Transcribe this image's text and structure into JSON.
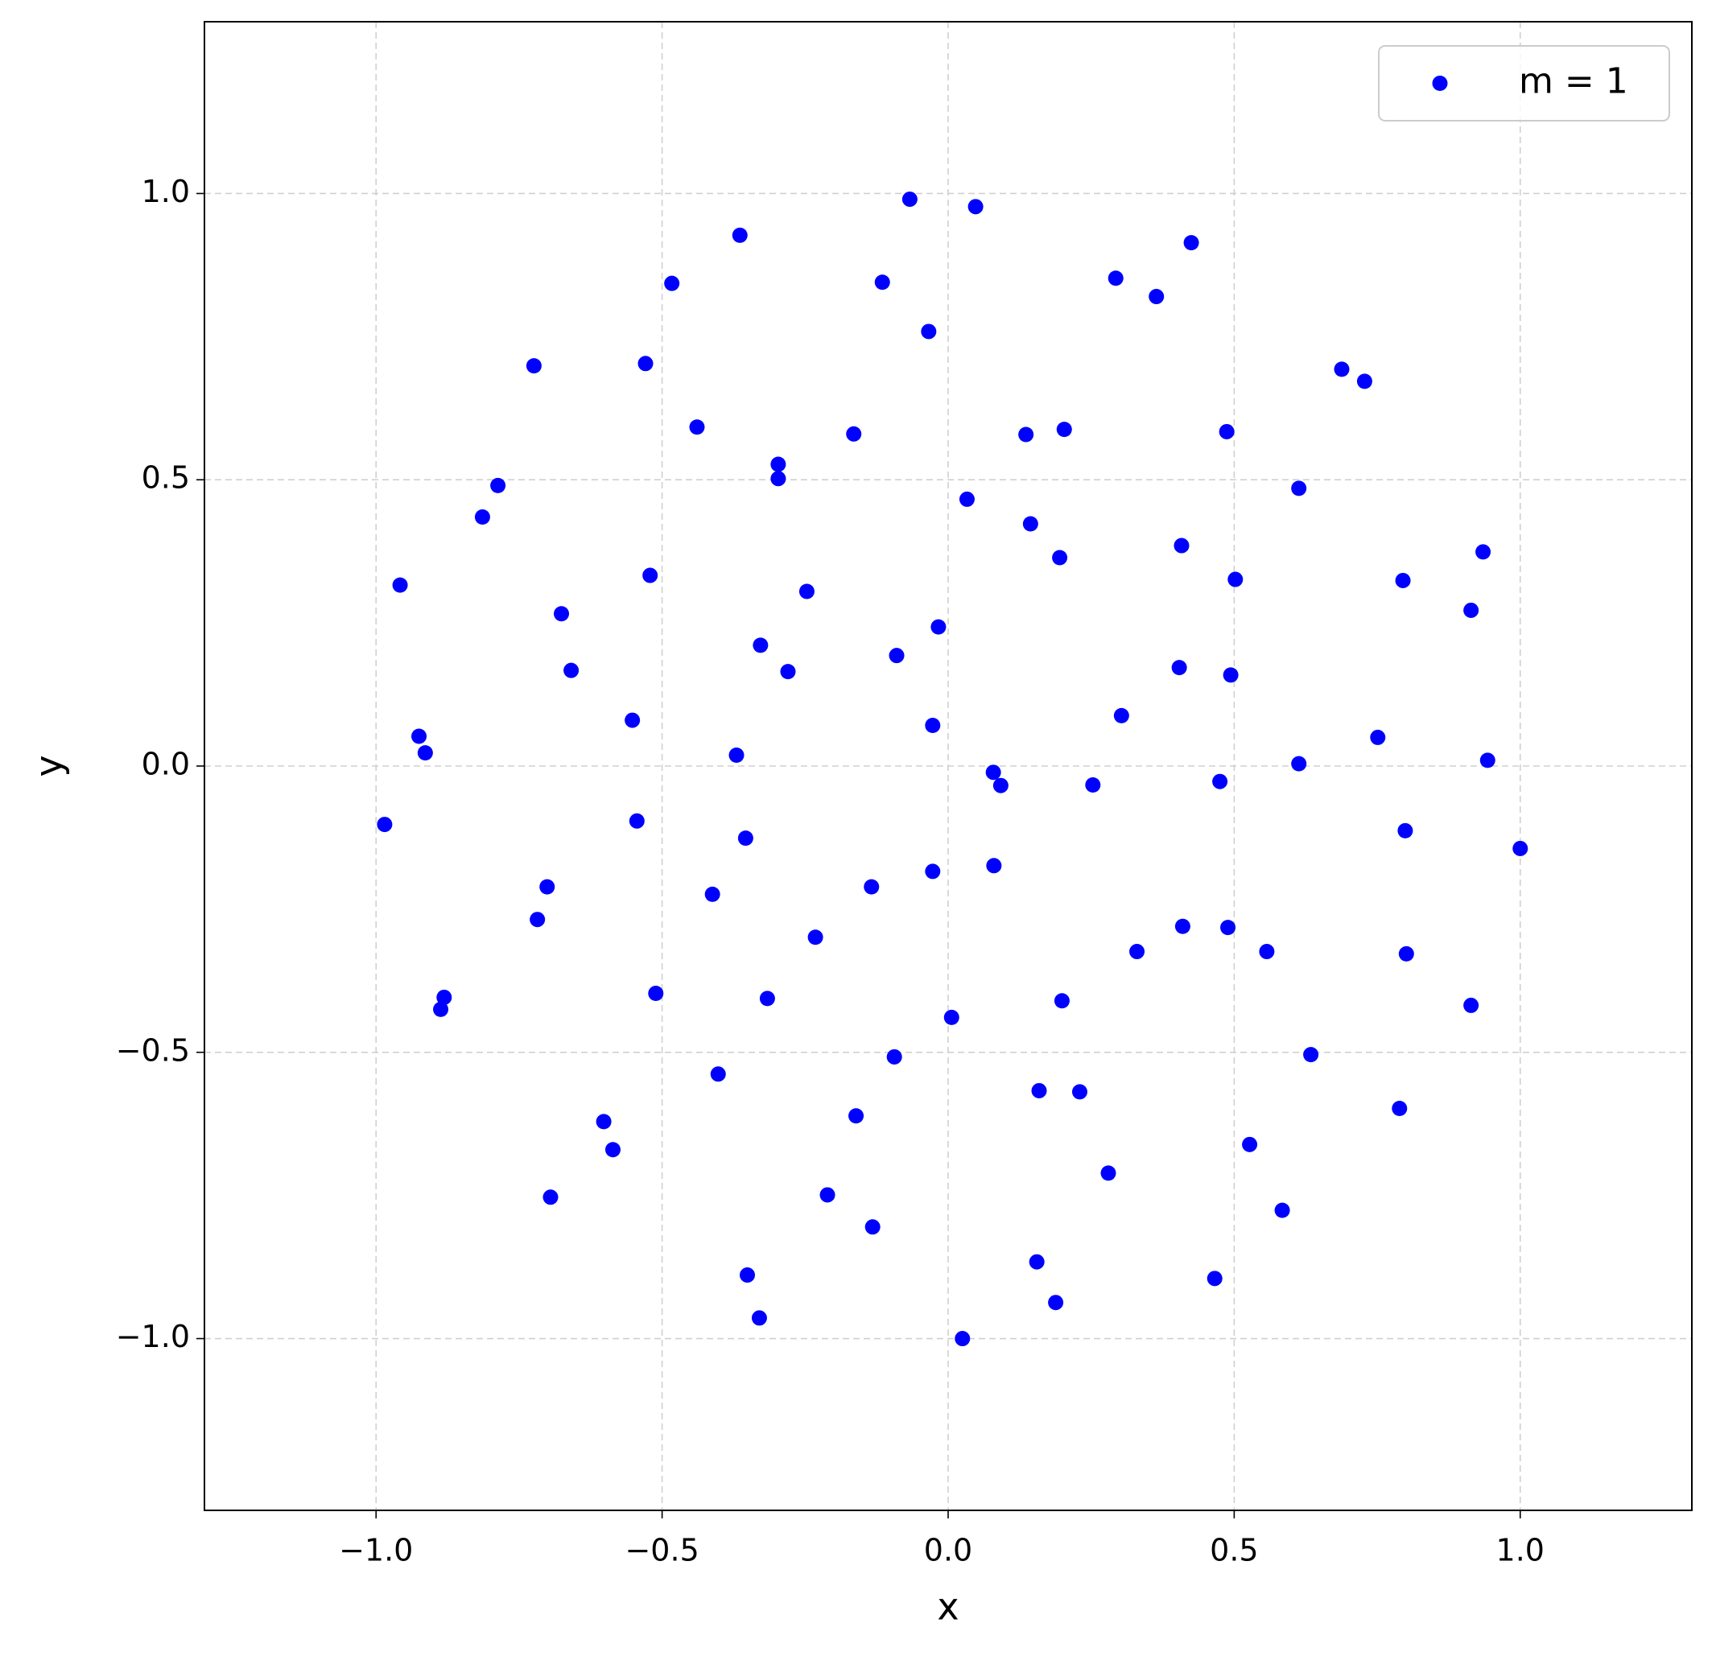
{
  "chart_data": {
    "type": "scatter",
    "xlabel": "x",
    "ylabel": "y",
    "xlim": [
      -1.3,
      1.3
    ],
    "ylim": [
      -1.3,
      1.3
    ],
    "xticks": [
      {
        "value": -1,
        "label": "−1.0"
      },
      {
        "value": -0.5,
        "label": "−0.5"
      },
      {
        "value": 0,
        "label": "0.0"
      },
      0.5,
      {
        "value": 1,
        "label": "1.0"
      }
    ],
    "yticks": [
      {
        "value": -1,
        "label": "−1.0"
      },
      {
        "value": -0.5,
        "label": "−0.5"
      },
      {
        "value": 0,
        "label": "0.0"
      },
      0.5,
      {
        "value": 1,
        "label": "1.0"
      }
    ],
    "grid": true,
    "legend": "upper right",
    "series": [
      {
        "name": "m = 1",
        "color": "blue",
        "x": [
          -0.067,
          0.048,
          -0.364,
          0.425,
          -0.483,
          -0.115,
          0.293,
          0.364,
          -0.034,
          -0.724,
          -0.529,
          0.688,
          0.728,
          -0.439,
          -0.165,
          0.136,
          0.203,
          0.487,
          -0.297,
          -0.297,
          -0.787,
          -0.814,
          0.033,
          0.613,
          0.144,
          0.408,
          0.195,
          0.935,
          0.502,
          0.795,
          -0.958,
          -0.521,
          -0.247,
          -0.676,
          0.914,
          -0.017,
          -0.328,
          -0.09,
          -0.659,
          -0.28,
          0.404,
          0.494,
          -0.552,
          -0.027,
          0.303,
          0.751,
          -0.925,
          -0.914,
          -0.37,
          0.079,
          0.092,
          0.253,
          0.613,
          0.943,
          0.475,
          -0.985,
          -0.544,
          -0.354,
          0.799,
          1.0,
          -0.701,
          -0.134,
          -0.027,
          0.08,
          -0.412,
          -0.718,
          -0.232,
          0.41,
          0.489,
          0.33,
          0.557,
          0.801,
          -0.511,
          -0.881,
          -0.887,
          -0.316,
          0.199,
          0.914,
          0.006,
          -0.094,
          0.634,
          -0.402,
          0.159,
          0.23,
          0.789,
          -0.161,
          -0.602,
          -0.586,
          0.527,
          0.28,
          -0.695,
          -0.211,
          0.584,
          -0.132,
          0.155,
          -0.351,
          0.466,
          0.188,
          -0.33,
          0.025
        ],
        "y": [
          0.99,
          0.977,
          0.927,
          0.914,
          0.843,
          0.845,
          0.852,
          0.82,
          0.759,
          0.699,
          0.703,
          0.693,
          0.672,
          0.592,
          0.58,
          0.579,
          0.588,
          0.584,
          0.527,
          0.502,
          0.49,
          0.435,
          0.466,
          0.485,
          0.423,
          0.385,
          0.364,
          0.374,
          0.326,
          0.324,
          0.316,
          0.333,
          0.305,
          0.266,
          0.272,
          0.243,
          0.211,
          0.193,
          0.167,
          0.165,
          0.172,
          0.159,
          0.08,
          0.071,
          0.088,
          0.05,
          0.052,
          0.023,
          0.019,
          -0.011,
          -0.034,
          -0.033,
          0.004,
          0.01,
          -0.027,
          -0.102,
          -0.096,
          -0.126,
          -0.113,
          -0.144,
          -0.211,
          -0.211,
          -0.184,
          -0.174,
          -0.224,
          -0.268,
          -0.299,
          -0.28,
          -0.282,
          -0.324,
          -0.324,
          -0.328,
          -0.397,
          -0.404,
          -0.425,
          -0.406,
          -0.41,
          -0.418,
          -0.439,
          -0.508,
          -0.504,
          -0.538,
          -0.567,
          -0.569,
          -0.598,
          -0.611,
          -0.621,
          -0.67,
          -0.661,
          -0.711,
          -0.753,
          -0.749,
          -0.776,
          -0.805,
          -0.866,
          -0.889,
          -0.895,
          -0.937,
          -0.964,
          -1.0
        ]
      }
    ]
  }
}
